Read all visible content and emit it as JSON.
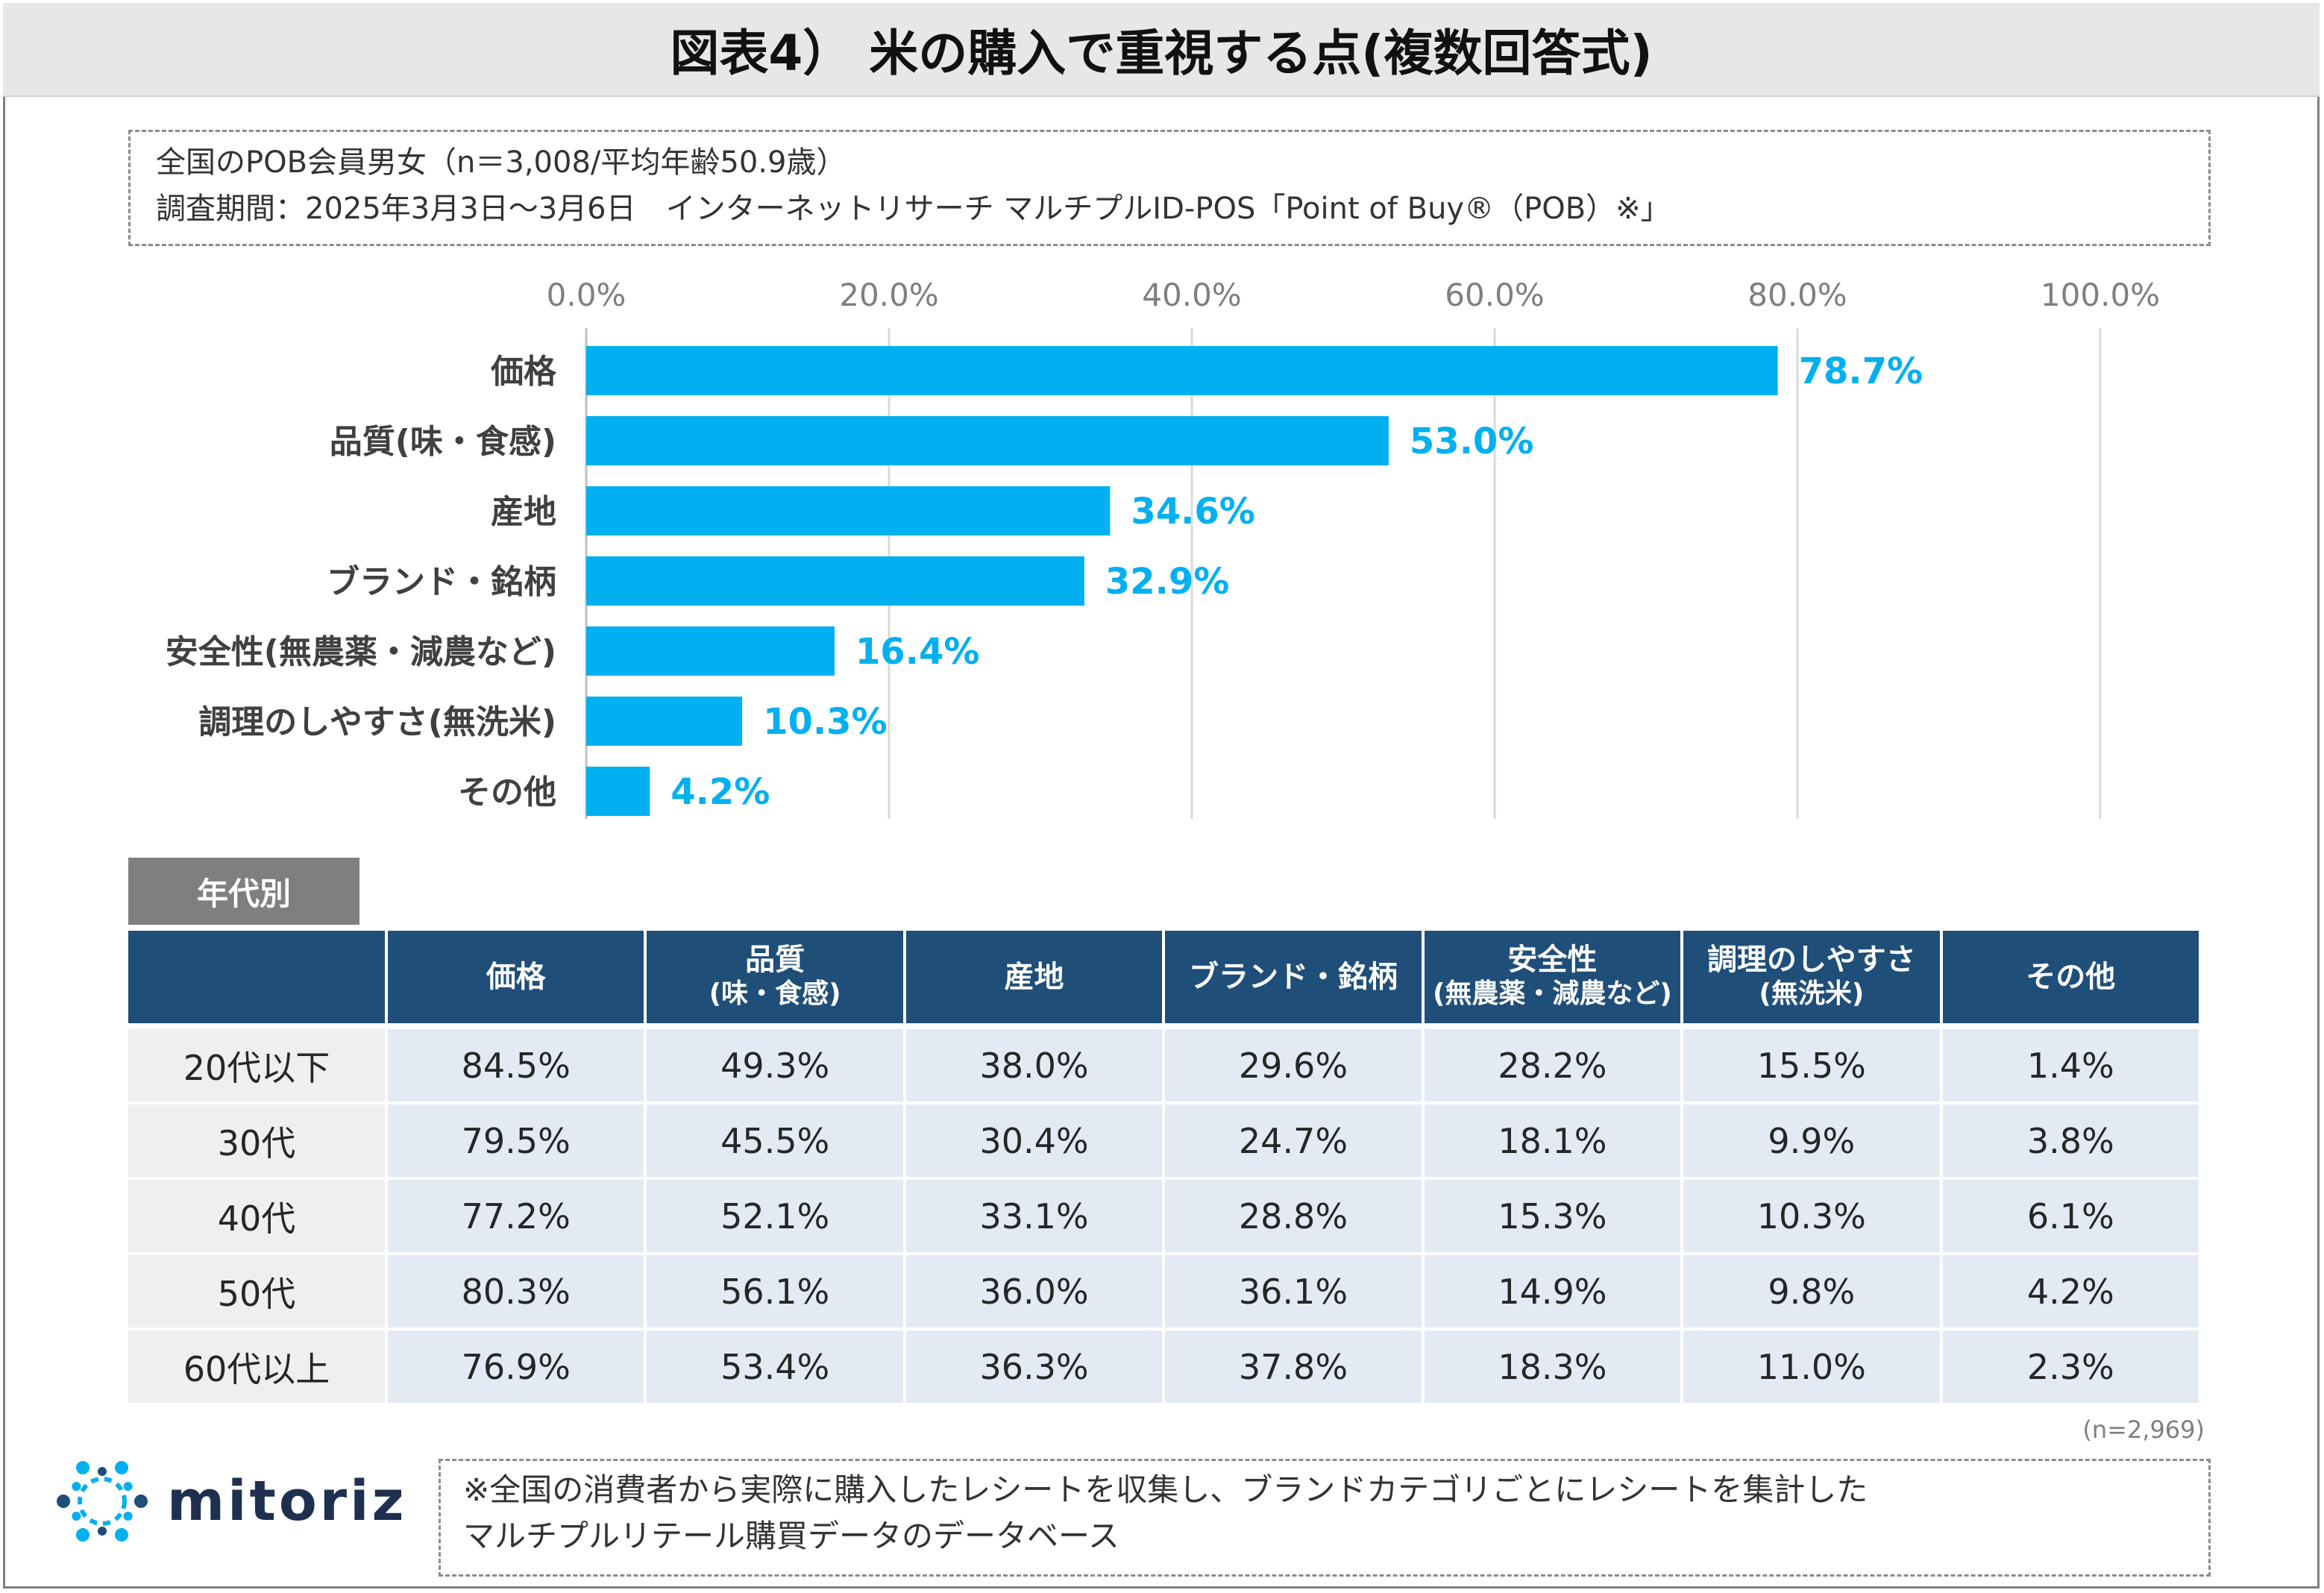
{
  "title": "図表4） 米の購入で重視する点(複数回答式)",
  "info": {
    "line1": "全国のPOB会員男女（n＝3,008/平均年齢50.9歳）",
    "line2": "調査期間：2025年3月3日〜3月6日　インターネットリサーチ マルチプルID-POS「Point of Buy®（POB）※」"
  },
  "chart_data": {
    "type": "bar",
    "orientation": "horizontal",
    "categories": [
      "価格",
      "品質(味・食感)",
      "産地",
      "ブランド・銘柄",
      "安全性(無農薬・減農など)",
      "調理のしやすさ(無洗米)",
      "その他"
    ],
    "values": [
      78.7,
      53.0,
      34.6,
      32.9,
      16.4,
      10.3,
      4.2
    ],
    "value_labels": [
      "78.7%",
      "53.0%",
      "34.6%",
      "32.9%",
      "16.4%",
      "10.3%",
      "4.2%"
    ],
    "xlim": [
      0,
      100
    ],
    "x_ticks": [
      0,
      20,
      40,
      60,
      80,
      100
    ],
    "x_tick_labels": [
      "0.0%",
      "20.0%",
      "40.0%",
      "60.0%",
      "80.0%",
      "100.0%"
    ],
    "x_axis_position": "top",
    "grid": true,
    "bar_color": "#00b0f0",
    "label_color": "#00b0f0"
  },
  "section_label": "年代別",
  "table": {
    "headers": [
      "",
      "価格",
      "品質\n(味・食感)",
      "産地",
      "ブランド・銘柄",
      "安全性\n(無農薬・減農など)",
      "調理のしやすさ\n(無洗米)",
      "その他"
    ],
    "rows": [
      [
        "20代以下",
        "84.5%",
        "49.3%",
        "38.0%",
        "29.6%",
        "28.2%",
        "15.5%",
        "1.4%"
      ],
      [
        "30代",
        "79.5%",
        "45.5%",
        "30.4%",
        "24.7%",
        "18.1%",
        "9.9%",
        "3.8%"
      ],
      [
        "40代",
        "77.2%",
        "52.1%",
        "33.1%",
        "28.8%",
        "15.3%",
        "10.3%",
        "6.1%"
      ],
      [
        "50代",
        "80.3%",
        "56.1%",
        "36.0%",
        "36.1%",
        "14.9%",
        "9.8%",
        "4.2%"
      ],
      [
        "60代以上",
        "76.9%",
        "53.4%",
        "36.3%",
        "37.8%",
        "18.3%",
        "11.0%",
        "2.3%"
      ]
    ],
    "header_color": "#1f4e79"
  },
  "table_note": "(n=2,969)",
  "logo": {
    "text": "mitoriz",
    "icon": "sun-burst-icon"
  },
  "footnote": {
    "line1": "※全国の消費者から実際に購入したレシートを収集し、ブランドカテゴリごとにレシートを集計した",
    "line2": "マルチプルリテール購買データのデータベース"
  }
}
